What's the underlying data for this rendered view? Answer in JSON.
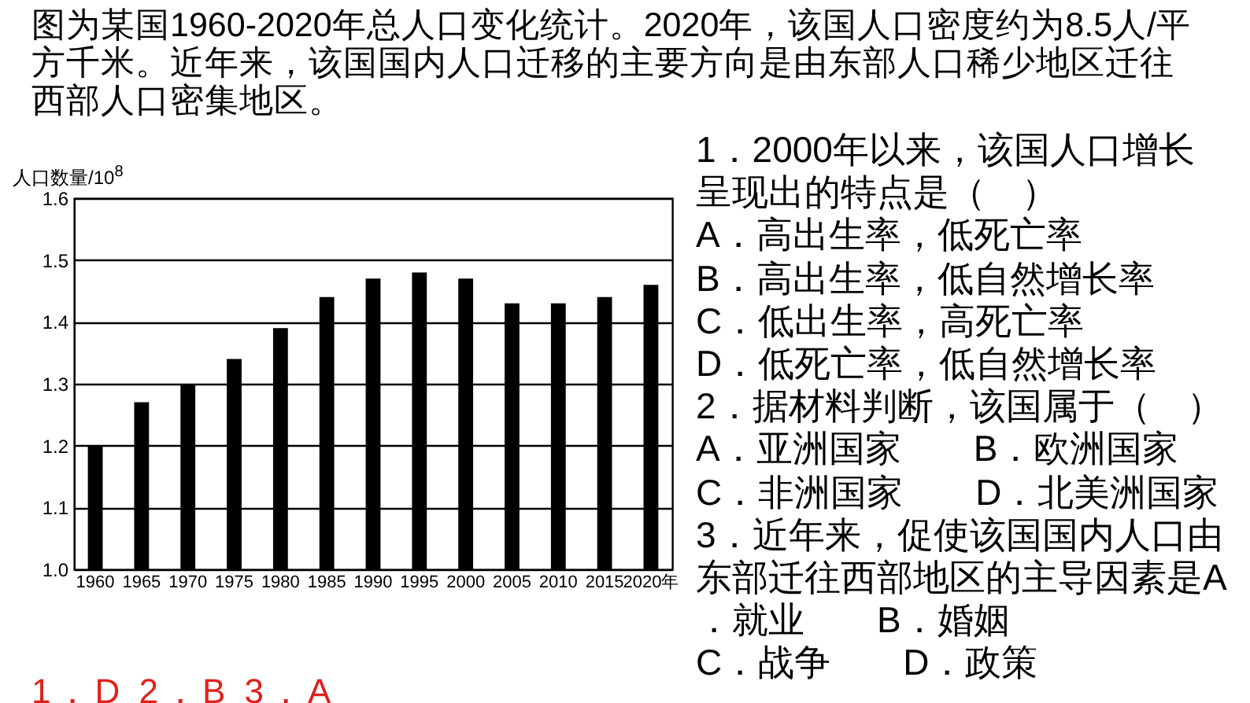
{
  "chart_data": {
    "type": "bar",
    "title": "图为某国1960-2020年总人口变化统计。2020年，该国人口密度约为8.5人/平方千米。近年来，该国国内人口迁移的主要方向是由东部人口稀少地区迁往西部人口密集地区。",
    "ylabel": "人口数量/10$^{8}$",
    "categories": [
      "1960",
      "1965",
      "1970",
      "1975",
      "1980",
      "1985",
      "1990",
      "1995",
      "2000",
      "2005",
      "2010",
      "2015",
      "2020年"
    ],
    "values": [
      1.2,
      1.27,
      1.3,
      1.34,
      1.39,
      1.44,
      1.47,
      1.48,
      1.47,
      1.43,
      1.43,
      1.44,
      1.46
    ],
    "color": "#000000",
    "ylim": [
      1.0,
      1.6
    ],
    "yticks": [
      {
        "value": 1,
        "label": "1.0"
      },
      1.1,
      1.2,
      1.3,
      1.4,
      1.5,
      1.6
    ],
    "grid": "y",
    "annotations": [
      "1．2000年以来，该国人口增长",
      "呈现出的特点是（　）",
      "A．高出生率，低死亡率",
      "B．高出生率，低自然增长率",
      "C．低出生率，高死亡率",
      "D．低死亡率，低自然增长率",
      "2．据材料判断，该国属于（　）",
      "A．亚洲国家　　B．欧洲国家",
      "C．非洲国家　　D．北美洲国家",
      "3．近年来，促使该国国内人口由",
      "东部迁往西部地区的主导因素是A",
      "．就业　　B．婚姻",
      "C．战争　　D．政策",
      "1．D 2．B 3．A"
    ]
  }
}
